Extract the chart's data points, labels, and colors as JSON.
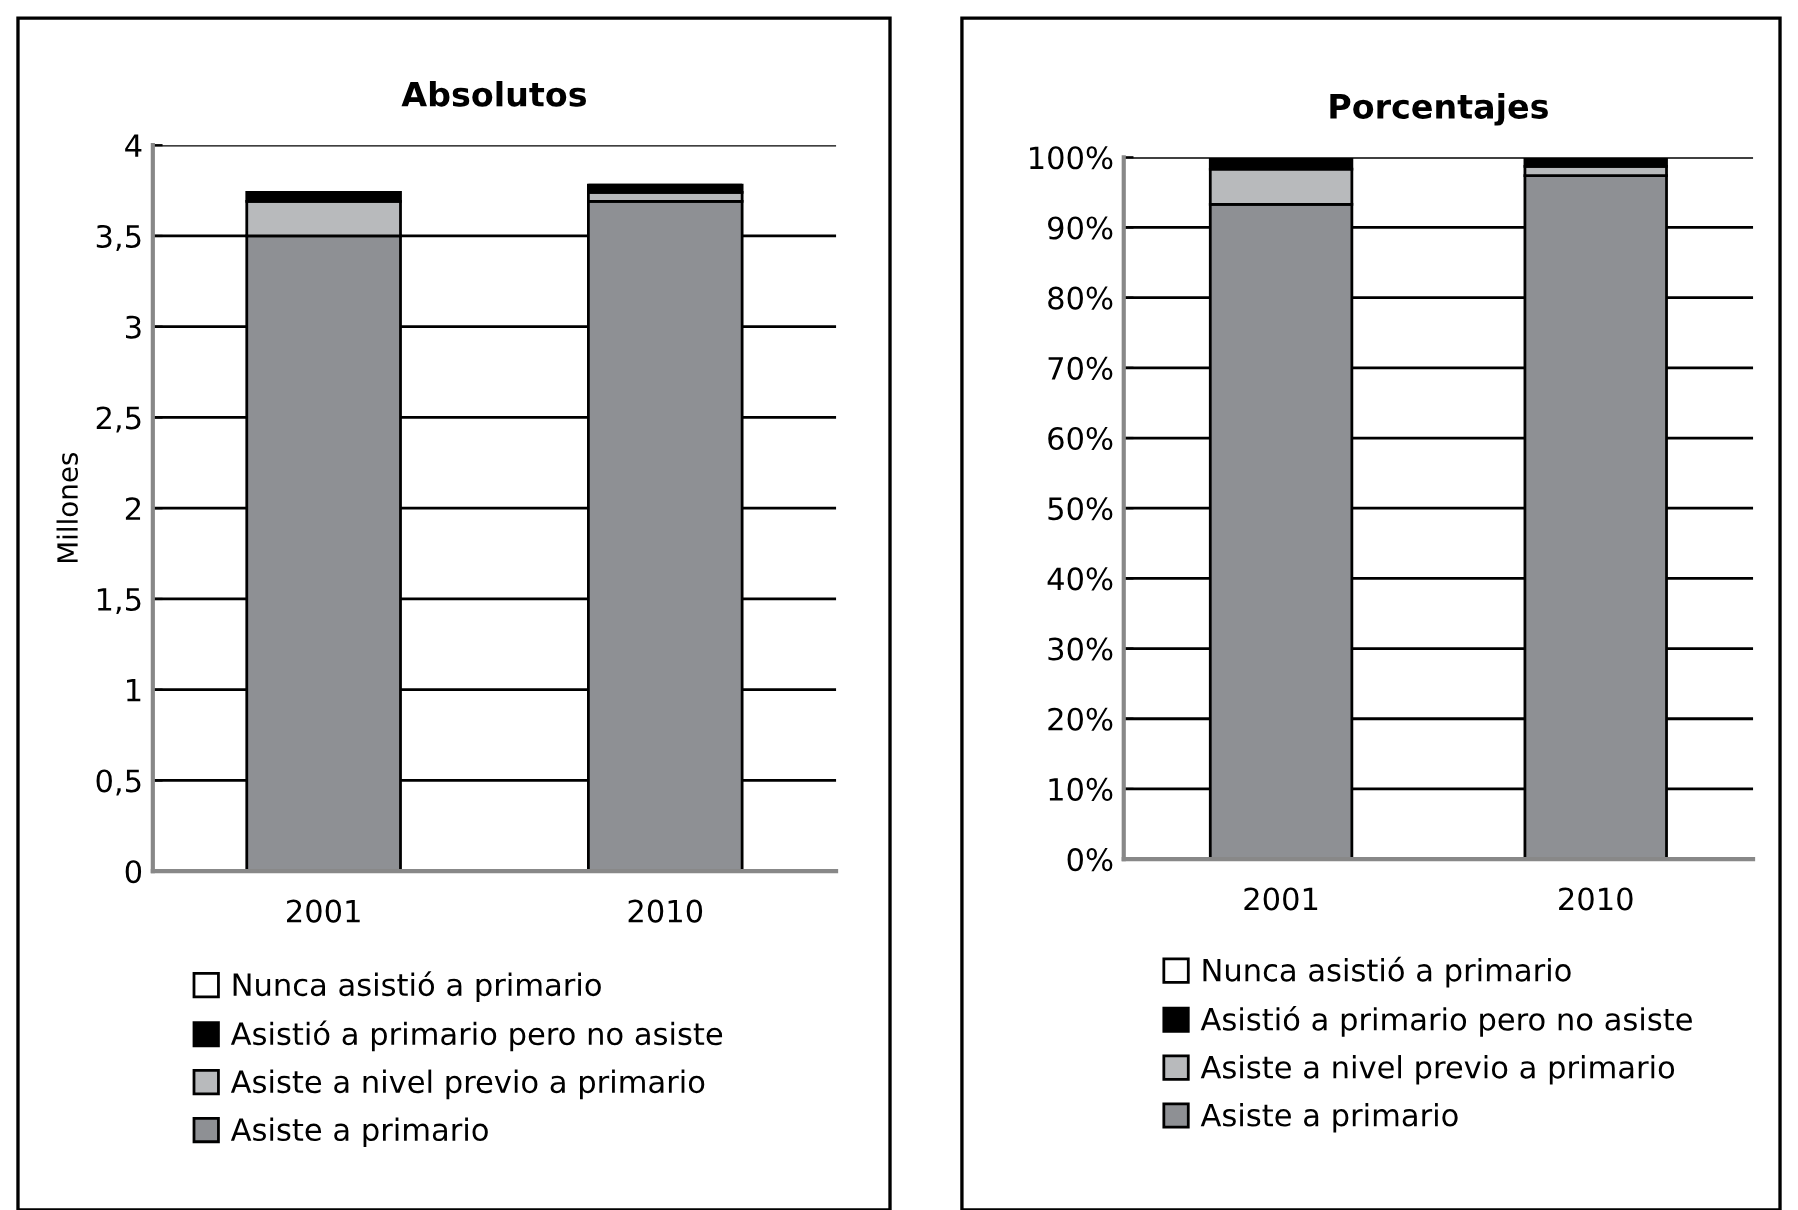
{
  "chart_data": [
    {
      "type": "bar",
      "title": "Absolutos",
      "ylabel": "Millones",
      "categories": [
        "2001",
        "2010"
      ],
      "stacked": true,
      "series": [
        {
          "name": "Asiste a primario",
          "color": "#8e9094",
          "values": [
            3.5,
            3.69
          ]
        },
        {
          "name": "Asiste a nivel previo a primario",
          "color": "#b8babc",
          "values": [
            0.19,
            0.05
          ]
        },
        {
          "name": "Asistió a primario pero no asiste",
          "color": "#000000",
          "values": [
            0.05,
            0.04
          ]
        },
        {
          "name": "Nunca asistió a primario",
          "color": "#ffffff",
          "values": [
            null,
            null
          ]
        }
      ],
      "ylim": [
        0,
        4
      ],
      "yticks": [
        0,
        {
          "value": 0.5,
          "label": "0,5"
        },
        1,
        {
          "value": 1.5,
          "label": "1,5"
        },
        2,
        {
          "value": 2.5,
          "label": "2,5"
        },
        3,
        {
          "value": 3.5,
          "label": "3,5"
        },
        4
      ],
      "grid": "y",
      "legend": "bottom"
    },
    {
      "type": "bar",
      "title": "Porcentajes",
      "categories": [
        "2001",
        "2010"
      ],
      "stacked": true,
      "series": [
        {
          "name": "Asiste a primario",
          "color": "#8e9094",
          "values": [
            93.3,
            97.4
          ]
        },
        {
          "name": "Asiste a nivel previo a primario",
          "color": "#b8babc",
          "values": [
            5.0,
            1.3
          ]
        },
        {
          "name": "Asistió a primario pero no asiste",
          "color": "#000000",
          "values": [
            1.4,
            1.0
          ]
        },
        {
          "name": "Nunca asistió a primario",
          "color": "#ffffff",
          "values": [
            null,
            null
          ]
        }
      ],
      "ylim": [
        0,
        100
      ],
      "yticks": [
        {
          "value": 0,
          "label": "0%"
        },
        {
          "value": 10,
          "label": "10%"
        },
        {
          "value": 20,
          "label": "20%"
        },
        {
          "value": 30,
          "label": "30%"
        },
        {
          "value": 40,
          "label": "40%"
        },
        {
          "value": 50,
          "label": "50%"
        },
        {
          "value": 60,
          "label": "60%"
        },
        {
          "value": 70,
          "label": "70%"
        },
        {
          "value": 80,
          "label": "80%"
        },
        {
          "value": 90,
          "label": "90%"
        },
        {
          "value": 100,
          "label": "100%"
        }
      ],
      "grid": "y",
      "legend": "bottom"
    }
  ]
}
